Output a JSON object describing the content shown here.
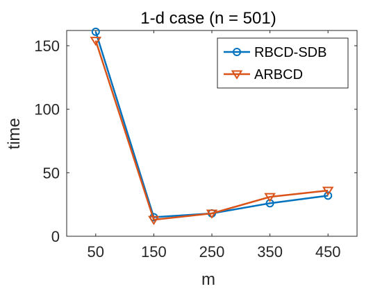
{
  "chart_data": {
    "type": "line",
    "title": "1-d case (n = 501)",
    "xlabel": "m",
    "ylabel": "time",
    "x": [
      50,
      150,
      250,
      350,
      450
    ],
    "xticks": [
      "50",
      "150",
      "250",
      "350",
      "450"
    ],
    "yticks": [
      "0",
      "50",
      "100",
      "150"
    ],
    "xlim": [
      0,
      500
    ],
    "ylim": [
      0,
      162
    ],
    "grid": false,
    "legend_position": "top-right",
    "series": [
      {
        "name": "RBCD-SDB",
        "color": "#0072BD",
        "marker": "circle",
        "values": [
          161,
          15,
          18,
          26,
          32
        ]
      },
      {
        "name": "ARBCD",
        "color": "#D95319",
        "marker": "triangle-down",
        "values": [
          154,
          13,
          18,
          31,
          36
        ]
      }
    ]
  }
}
